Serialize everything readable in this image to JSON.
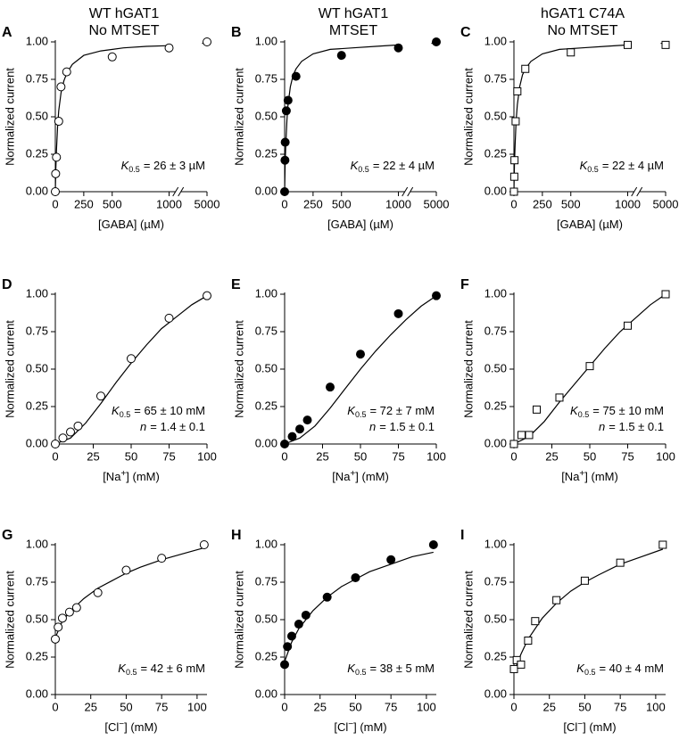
{
  "chart_data": [
    {
      "type": "scatter",
      "panel": "A",
      "title": "WT hGAT1",
      "subtitle": "No MTSET",
      "xlabel": "[GABA] (µM)",
      "ylabel": "Normalized current",
      "xlim": [
        0,
        5000
      ],
      "xbreak": [
        1000,
        5000
      ],
      "xticks": [
        0,
        250,
        500,
        1000,
        5000
      ],
      "ylim": [
        0,
        1
      ],
      "yticks": [
        {
          "value": 0,
          "label": "0.00"
        },
        {
          "value": 0.25,
          "label": "0.25"
        },
        {
          "value": 0.5,
          "label": "0.50"
        },
        {
          "value": 0.75,
          "label": "0.75"
        },
        {
          "value": 1,
          "label": "1.00"
        }
      ],
      "marker": "circle",
      "fill": "#ffffff",
      "x": [
        0,
        3,
        10,
        30,
        50,
        100,
        500,
        1000,
        5000
      ],
      "values": [
        0,
        0.12,
        0.23,
        0.47,
        0.7,
        0.8,
        0.9,
        0.96,
        1.0
      ],
      "curve": {
        "x": [
          0,
          5,
          10,
          20,
          30,
          50,
          75,
          100,
          150,
          250,
          400,
          600,
          800,
          1000,
          2000,
          4000,
          5000
        ],
        "values": [
          0,
          0.16,
          0.28,
          0.43,
          0.54,
          0.66,
          0.74,
          0.79,
          0.85,
          0.91,
          0.94,
          0.96,
          0.97,
          0.975,
          null,
          0.99,
          0.995
        ]
      },
      "annotations": [
        {
          "symbol": "K",
          "subscript": "0.5",
          "text": "= 26 ± 3 µM"
        }
      ]
    },
    {
      "type": "scatter",
      "panel": "B",
      "title": "WT hGAT1",
      "subtitle": "MTSET",
      "xlabel": "[GABA] (µM)",
      "ylabel": "Normalized current",
      "xlim": [
        0,
        5000
      ],
      "xbreak": [
        1000,
        5000
      ],
      "xticks": [
        0,
        250,
        500,
        1000,
        5000
      ],
      "ylim": [
        0,
        1
      ],
      "yticks": [
        {
          "value": 0,
          "label": "0.00"
        },
        {
          "value": 0.25,
          "label": "0.25"
        },
        {
          "value": 0.5,
          "label": "0.50"
        },
        {
          "value": 0.75,
          "label": "0.75"
        },
        {
          "value": 1,
          "label": "1.00"
        }
      ],
      "marker": "circle",
      "fill": "#000000",
      "x": [
        0,
        3,
        5,
        15,
        30,
        100,
        500,
        1000,
        5000
      ],
      "values": [
        0,
        0.21,
        0.33,
        0.54,
        0.61,
        0.77,
        0.91,
        0.96,
        1.0
      ],
      "curve": {
        "x": [
          0,
          5,
          10,
          20,
          30,
          50,
          75,
          100,
          150,
          250,
          400,
          600,
          800,
          1000,
          2000,
          4000,
          5000
        ],
        "values": [
          0,
          0.19,
          0.31,
          0.48,
          0.58,
          0.7,
          0.78,
          0.82,
          0.87,
          0.92,
          0.95,
          0.96,
          0.97,
          0.98,
          null,
          0.99,
          0.995
        ]
      },
      "annotations": [
        {
          "symbol": "K",
          "subscript": "0.5",
          "text": "= 22 ± 4 µM"
        }
      ]
    },
    {
      "type": "scatter",
      "panel": "C",
      "title": "hGAT1 C74A",
      "subtitle": "No MTSET",
      "xlabel": "[GABA] (µM)",
      "ylabel": "Normalized current",
      "xlim": [
        0,
        5000
      ],
      "xbreak": [
        1000,
        5000
      ],
      "xticks": [
        0,
        250,
        500,
        1000,
        5000
      ],
      "ylim": [
        0,
        1
      ],
      "yticks": [
        {
          "value": 0,
          "label": "0.00"
        },
        {
          "value": 0.25,
          "label": "0.25"
        },
        {
          "value": 0.5,
          "label": "0.50"
        },
        {
          "value": 0.75,
          "label": "0.75"
        },
        {
          "value": 1,
          "label": "1.00"
        }
      ],
      "marker": "square",
      "fill": "#ffffff",
      "x": [
        0,
        3,
        5,
        15,
        30,
        100,
        500,
        1000,
        5000
      ],
      "values": [
        0,
        0.1,
        0.21,
        0.47,
        0.67,
        0.82,
        0.93,
        0.98,
        0.98
      ],
      "curve": {
        "x": [
          0,
          5,
          10,
          20,
          30,
          50,
          75,
          100,
          150,
          250,
          400,
          600,
          800,
          1000,
          2000,
          4000,
          5000
        ],
        "values": [
          0,
          0.19,
          0.31,
          0.48,
          0.58,
          0.7,
          0.78,
          0.82,
          0.87,
          0.92,
          0.95,
          0.96,
          0.97,
          0.98,
          null,
          0.99,
          0.995
        ]
      },
      "annotations": [
        {
          "symbol": "K",
          "subscript": "0.5",
          "text": "= 22 ± 4 µM"
        }
      ]
    },
    {
      "type": "scatter",
      "panel": "D",
      "xlabel": "[Na",
      "xlabel_sup": "+",
      "xlabel_end": "] (mM)",
      "ylabel": "Normalized current",
      "xlim": [
        0,
        100
      ],
      "xticks": [
        0,
        25,
        50,
        75,
        100
      ],
      "ylim": [
        0,
        1
      ],
      "yticks": [
        {
          "value": 0,
          "label": "0.00"
        },
        {
          "value": 0.25,
          "label": "0.25"
        },
        {
          "value": 0.5,
          "label": "0.50"
        },
        {
          "value": 0.75,
          "label": "0.75"
        },
        {
          "value": 1,
          "label": "1.00"
        }
      ],
      "marker": "circle",
      "fill": "#ffffff",
      "x": [
        0,
        5,
        10,
        15,
        30,
        50,
        75,
        100
      ],
      "values": [
        0,
        0.04,
        0.08,
        0.12,
        0.32,
        0.57,
        0.84,
        0.99
      ],
      "curve": {
        "x": [
          0,
          10,
          20,
          30,
          40,
          50,
          60,
          70,
          80,
          90,
          100
        ],
        "values": [
          0,
          0.04,
          0.14,
          0.27,
          0.41,
          0.54,
          0.66,
          0.77,
          0.85,
          0.93,
          0.99
        ]
      },
      "annotations": [
        {
          "symbol": "K",
          "subscript": "0.5",
          "text": "= 65 ± 10 mM"
        },
        {
          "symbol": "n",
          "text": "= 1.4 ± 0.1"
        }
      ]
    },
    {
      "type": "scatter",
      "panel": "E",
      "xlabel": "[Na",
      "xlabel_sup": "+",
      "xlabel_end": "] (mM)",
      "ylabel": "Normalized current",
      "xlim": [
        0,
        100
      ],
      "xticks": [
        0,
        25,
        50,
        75,
        100
      ],
      "ylim": [
        0,
        1
      ],
      "yticks": [
        {
          "value": 0,
          "label": "0.00"
        },
        {
          "value": 0.25,
          "label": "0.25"
        },
        {
          "value": 0.5,
          "label": "0.50"
        },
        {
          "value": 0.75,
          "label": "0.75"
        },
        {
          "value": 1,
          "label": "1.00"
        }
      ],
      "marker": "circle",
      "fill": "#000000",
      "x": [
        0,
        5,
        10,
        15,
        30,
        50,
        75,
        100
      ],
      "values": [
        0,
        0.05,
        0.1,
        0.16,
        0.38,
        0.6,
        0.87,
        0.99
      ],
      "curve": {
        "x": [
          0,
          10,
          20,
          30,
          40,
          50,
          60,
          70,
          80,
          90,
          100
        ],
        "values": [
          0,
          0.04,
          0.12,
          0.24,
          0.37,
          0.5,
          0.62,
          0.73,
          0.83,
          0.92,
          0.99
        ]
      },
      "annotations": [
        {
          "symbol": "K",
          "subscript": "0.5",
          "text": "= 72 ± 7 mM"
        },
        {
          "symbol": "n",
          "text": "= 1.5 ± 0.1"
        }
      ]
    },
    {
      "type": "scatter",
      "panel": "F",
      "xlabel": "[Na",
      "xlabel_sup": "+",
      "xlabel_end": "] (mM)",
      "ylabel": "Normalized current",
      "xlim": [
        0,
        100
      ],
      "xticks": [
        0,
        25,
        50,
        75,
        100
      ],
      "ylim": [
        0,
        1
      ],
      "yticks": [
        {
          "value": 0,
          "label": "0.00"
        },
        {
          "value": 0.25,
          "label": "0.25"
        },
        {
          "value": 0.5,
          "label": "0.50"
        },
        {
          "value": 0.75,
          "label": "0.75"
        },
        {
          "value": 1,
          "label": "1.00"
        }
      ],
      "marker": "square",
      "fill": "#ffffff",
      "x": [
        0,
        5,
        10,
        15,
        30,
        50,
        75,
        100
      ],
      "values": [
        0,
        0.06,
        0.06,
        0.23,
        0.31,
        0.52,
        0.79,
        1.0
      ],
      "curve": {
        "x": [
          0,
          10,
          20,
          30,
          40,
          50,
          60,
          70,
          80,
          90,
          100
        ],
        "values": [
          0,
          0.05,
          0.15,
          0.28,
          0.4,
          0.52,
          0.64,
          0.75,
          0.84,
          0.93,
          1.0
        ]
      },
      "annotations": [
        {
          "symbol": "K",
          "subscript": "0.5",
          "text": "= 75 ± 10 mM"
        },
        {
          "symbol": "n",
          "text": "= 1.5 ± 0.1"
        }
      ]
    },
    {
      "type": "scatter",
      "panel": "G",
      "xlabel": "[Cl",
      "xlabel_sup": "−",
      "xlabel_end": "] (mM)",
      "ylabel": "Normalized current",
      "xlim": [
        0,
        107
      ],
      "xticks": [
        0,
        25,
        50,
        75,
        100
      ],
      "ylim": [
        0,
        1
      ],
      "yticks": [
        {
          "value": 0,
          "label": "0.00"
        },
        {
          "value": 0.25,
          "label": "0.25"
        },
        {
          "value": 0.5,
          "label": "0.50"
        },
        {
          "value": 0.75,
          "label": "0.75"
        },
        {
          "value": 1,
          "label": "1.00"
        }
      ],
      "marker": "circle",
      "fill": "#ffffff",
      "x": [
        0,
        2,
        5,
        10,
        15,
        30,
        50,
        75,
        105
      ],
      "values": [
        0.37,
        0.45,
        0.51,
        0.55,
        0.58,
        0.68,
        0.83,
        0.91,
        1.0
      ],
      "curve": {
        "x": [
          0,
          5,
          10,
          20,
          30,
          40,
          50,
          60,
          75,
          90,
          105
        ],
        "values": [
          0.38,
          0.49,
          0.55,
          0.64,
          0.71,
          0.76,
          0.81,
          0.85,
          0.9,
          0.94,
          0.98
        ]
      },
      "annotations": [
        {
          "symbol": "K",
          "subscript": "0.5",
          "text": "= 42 ± 6 mM"
        }
      ]
    },
    {
      "type": "scatter",
      "panel": "H",
      "xlabel": "[Cl",
      "xlabel_sup": "−",
      "xlabel_end": "] (mM)",
      "ylabel": "Normalized current",
      "xlim": [
        0,
        107
      ],
      "xticks": [
        0,
        25,
        50,
        75,
        100
      ],
      "ylim": [
        0,
        1
      ],
      "yticks": [
        {
          "value": 0,
          "label": "0.00"
        },
        {
          "value": 0.25,
          "label": "0.25"
        },
        {
          "value": 0.5,
          "label": "0.50"
        },
        {
          "value": 0.75,
          "label": "0.75"
        },
        {
          "value": 1,
          "label": "1.00"
        }
      ],
      "marker": "circle",
      "fill": "#000000",
      "x": [
        0,
        2,
        5,
        10,
        15,
        30,
        50,
        75,
        105
      ],
      "values": [
        0.2,
        0.32,
        0.39,
        0.47,
        0.53,
        0.65,
        0.78,
        0.9,
        1.0
      ],
      "curve": {
        "x": [
          0,
          5,
          10,
          20,
          30,
          40,
          50,
          60,
          75,
          90,
          105
        ],
        "values": [
          0.22,
          0.35,
          0.44,
          0.56,
          0.65,
          0.72,
          0.77,
          0.82,
          0.87,
          0.92,
          0.95
        ]
      },
      "annotations": [
        {
          "symbol": "K",
          "subscript": "0.5",
          "text": "= 38 ± 5 mM"
        }
      ]
    },
    {
      "type": "scatter",
      "panel": "I",
      "xlabel": "[Cl",
      "xlabel_sup": "−",
      "xlabel_end": "] (mM)",
      "ylabel": "Normalized current",
      "xlim": [
        0,
        107
      ],
      "xticks": [
        0,
        25,
        50,
        75,
        100
      ],
      "ylim": [
        0,
        1
      ],
      "yticks": [
        {
          "value": 0,
          "label": "0.00"
        },
        {
          "value": 0.25,
          "label": "0.25"
        },
        {
          "value": 0.5,
          "label": "0.50"
        },
        {
          "value": 0.75,
          "label": "0.75"
        },
        {
          "value": 1,
          "label": "1.00"
        }
      ],
      "marker": "square",
      "fill": "#ffffff",
      "x": [
        0,
        2,
        5,
        10,
        15,
        30,
        50,
        75,
        105
      ],
      "values": [
        0.17,
        0.23,
        0.2,
        0.36,
        0.49,
        0.63,
        0.76,
        0.88,
        1.0
      ],
      "curve": {
        "x": [
          0,
          5,
          10,
          20,
          30,
          40,
          50,
          60,
          75,
          90,
          105
        ],
        "values": [
          0.15,
          0.27,
          0.37,
          0.51,
          0.61,
          0.69,
          0.75,
          0.8,
          0.87,
          0.92,
          0.97
        ]
      },
      "annotations": [
        {
          "symbol": "K",
          "subscript": "0.5",
          "text": "= 40 ± 4 mM"
        }
      ]
    }
  ]
}
